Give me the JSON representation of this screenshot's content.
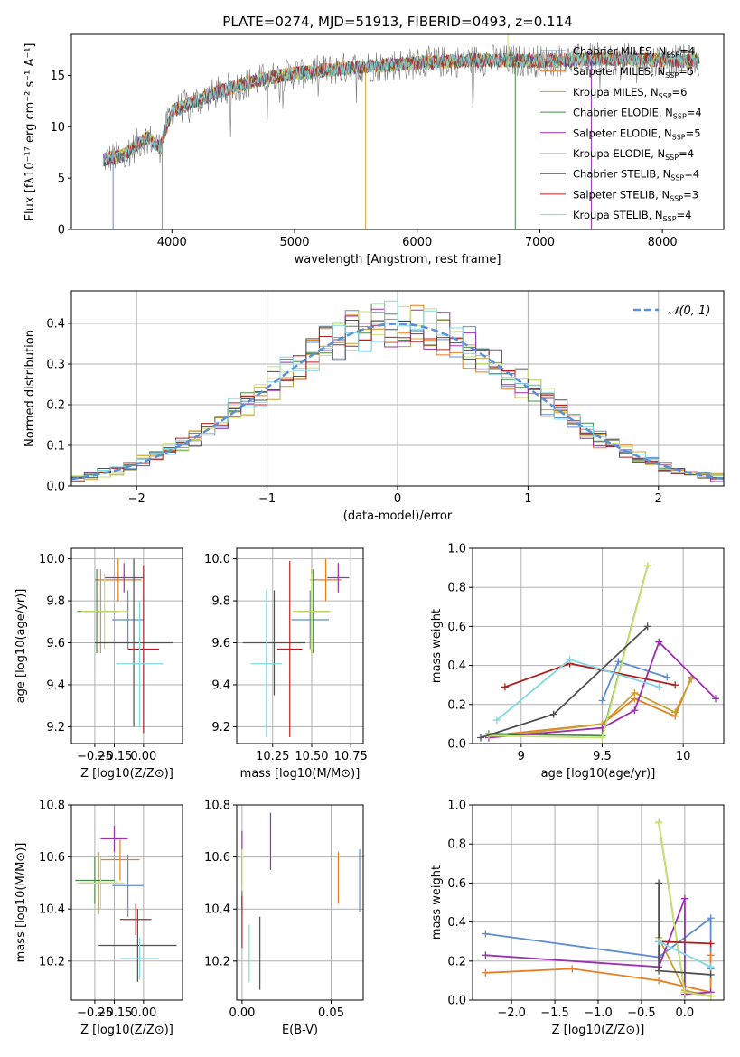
{
  "title": "PLATE=0274, MJD=51913, FIBERID=0493, z=0.114",
  "models": [
    {
      "label": "Chabrier MILES, N",
      "sub": "SSP",
      "n": "=4",
      "color": "#5f8dd3"
    },
    {
      "label": "Salpeter MILES, N",
      "sub": "SSP",
      "n": "=5",
      "color": "#e67e22"
    },
    {
      "label": "Kroupa MILES, N",
      "sub": "SSP",
      "n": "=6",
      "color": "#c8a030"
    },
    {
      "label": "Chabrier ELODIE, N",
      "sub": "SSP",
      "n": "=4",
      "color": "#4a8a4a"
    },
    {
      "label": "Salpeter ELODIE, N",
      "sub": "SSP",
      "n": "=5",
      "color": "#9b30b0"
    },
    {
      "label": "Kroupa ELODIE, N",
      "sub": "SSP",
      "n": "=4",
      "color": "#c8e070"
    },
    {
      "label": "Chabrier STELIB, N",
      "sub": "SSP",
      "n": "=4",
      "color": "#505050"
    },
    {
      "label": "Salpeter STELIB, N",
      "sub": "SSP",
      "n": "=3",
      "color": "#b02020"
    },
    {
      "label": "Kroupa STELIB, N",
      "sub": "SSP",
      "n": "=4",
      "color": "#80d8e0"
    }
  ],
  "chart_data": [
    {
      "id": "spectrum",
      "type": "line",
      "xlabel": "wavelength [Angstrom, rest frame]",
      "ylabel": "Flux [fλ10⁻¹⁷ erg cm⁻² s⁻¹ A⁻¹]",
      "xlim": [
        3180,
        8500
      ],
      "ylim": [
        0,
        19
      ],
      "xticks": [
        4000,
        5000,
        6000,
        7000,
        8000
      ],
      "yticks": [
        0,
        5,
        10,
        15
      ],
      "continuum": [
        [
          3440,
          6.8
        ],
        [
          3600,
          7.2
        ],
        [
          3800,
          9.0
        ],
        [
          3900,
          8.0
        ],
        [
          4000,
          11.5
        ],
        [
          4200,
          12.5
        ],
        [
          4400,
          13.5
        ],
        [
          4600,
          14.2
        ],
        [
          4800,
          14.8
        ],
        [
          5000,
          15.2
        ],
        [
          5500,
          15.8
        ],
        [
          6000,
          16.2
        ],
        [
          6500,
          16.5
        ],
        [
          7000,
          16.4
        ],
        [
          7500,
          16.6
        ],
        [
          8000,
          16.5
        ],
        [
          8300,
          16.4
        ]
      ],
      "spikes": [
        [
          3520,
          0
        ],
        [
          3920,
          0
        ],
        [
          5580,
          0
        ],
        [
          6800,
          0
        ],
        [
          7420,
          0
        ],
        [
          6740,
          19
        ]
      ]
    },
    {
      "id": "residuals",
      "type": "line",
      "xlabel": "(data-model)/error",
      "ylabel": "Normed distribution",
      "xlim": [
        -2.5,
        2.5
      ],
      "ylim": [
        0,
        0.48
      ],
      "xticks": [
        -2,
        -1,
        0,
        1,
        2
      ],
      "yticks": [
        0.0,
        0.1,
        0.2,
        0.3,
        0.4
      ],
      "legend": "𝒩(0, 1)",
      "gaussian_sigma": 1
    },
    {
      "id": "age-Z",
      "type": "scatter",
      "xlabel": "Z [log10(Z/Z⊙)]",
      "ylabel": "age  [log10(age/yr)]",
      "xlim": [
        -0.37,
        0.2
      ],
      "ylim": [
        9.12,
        10.05
      ],
      "xticks": [
        -0.25,
        -0.15,
        0.0
      ],
      "xticklabels": [
        "−0.25",
        "−0.15",
        "0.00"
      ],
      "yticks": [
        9.2,
        9.4,
        9.6,
        9.8,
        10.0
      ],
      "points": [
        {
          "x": -0.08,
          "xerr": 0.08,
          "y": 9.71,
          "yerr": 0.14,
          "c": 0
        },
        {
          "x": -0.13,
          "xerr": 0.12,
          "y": 9.9,
          "yerr": 0.1,
          "c": 1
        },
        {
          "x": -0.22,
          "xerr": 0.1,
          "y": 9.75,
          "yerr": 0.2,
          "c": 2
        },
        {
          "x": -0.24,
          "xerr": 0.1,
          "y": 9.75,
          "yerr": 0.2,
          "c": 3
        },
        {
          "x": -0.1,
          "xerr": 0.1,
          "y": 9.91,
          "yerr": 0.07,
          "c": 4
        },
        {
          "x": -0.2,
          "xerr": 0.12,
          "y": 9.75,
          "yerr": 0.18,
          "c": 5
        },
        {
          "x": -0.05,
          "xerr": 0.2,
          "y": 9.6,
          "yerr": 0.4,
          "c": 6
        },
        {
          "x": 0.0,
          "xerr": 0.08,
          "y": 9.57,
          "yerr": 0.4,
          "c": 7
        },
        {
          "x": -0.02,
          "xerr": 0.12,
          "y": 9.5,
          "yerr": 0.3,
          "c": 8
        }
      ]
    },
    {
      "id": "age-mass",
      "type": "scatter",
      "xlabel": "mass [log10(M/M⊙)]",
      "ylabel": "",
      "xlim": [
        10.02,
        10.83
      ],
      "ylim": [
        9.12,
        10.05
      ],
      "xticks": [
        10.25,
        10.5,
        10.75
      ],
      "xticklabels": [
        "10.25",
        "10.50",
        "10.75"
      ],
      "yticks": [
        9.2,
        9.4,
        9.6,
        9.8,
        10.0
      ],
      "points": [
        {
          "x": 10.49,
          "xerr": 0.12,
          "y": 9.71,
          "yerr": 0.14,
          "c": 0
        },
        {
          "x": 10.59,
          "xerr": 0.1,
          "y": 9.9,
          "yerr": 0.1,
          "c": 1
        },
        {
          "x": 10.5,
          "xerr": 0.12,
          "y": 9.75,
          "yerr": 0.2,
          "c": 2
        },
        {
          "x": 10.51,
          "xerr": 0.1,
          "y": 9.75,
          "yerr": 0.2,
          "c": 3
        },
        {
          "x": 10.67,
          "xerr": 0.07,
          "y": 9.91,
          "yerr": 0.07,
          "c": 4
        },
        {
          "x": 10.5,
          "xerr": 0.12,
          "y": 9.75,
          "yerr": 0.18,
          "c": 5
        },
        {
          "x": 10.26,
          "xerr": 0.2,
          "y": 9.6,
          "yerr": 0.25,
          "c": 6
        },
        {
          "x": 10.36,
          "xerr": 0.08,
          "y": 9.57,
          "yerr": 0.42,
          "c": 7
        },
        {
          "x": 10.21,
          "xerr": 0.1,
          "y": 9.5,
          "yerr": 0.35,
          "c": 8
        }
      ]
    },
    {
      "id": "mw-age",
      "type": "line",
      "xlabel": "age  [log10(age/yr)]",
      "ylabel": "mass weight",
      "xlim": [
        8.7,
        10.25
      ],
      "ylim": [
        0,
        1.0
      ],
      "xticks": [
        9.0,
        9.5,
        10.0
      ],
      "yticks": [
        0.0,
        0.2,
        0.4,
        0.6,
        0.8,
        1.0
      ],
      "series": [
        {
          "c": 0,
          "x": [
            9.5,
            9.6,
            9.9
          ],
          "y": [
            0.22,
            0.42,
            0.34
          ]
        },
        {
          "c": 1,
          "x": [
            8.8,
            9.5,
            9.7,
            9.95,
            10.05
          ],
          "y": [
            0.04,
            0.1,
            0.23,
            0.14,
            0.34
          ]
        },
        {
          "c": 2,
          "x": [
            8.8,
            9.5,
            9.7,
            9.95,
            10.05
          ],
          "y": [
            0.03,
            0.1,
            0.26,
            0.16,
            0.33
          ]
        },
        {
          "c": 3,
          "x": [
            8.8,
            9.5,
            9.78
          ],
          "y": [
            0.05,
            0.04,
            0.91
          ]
        },
        {
          "c": 4,
          "x": [
            8.8,
            9.5,
            9.7,
            9.85,
            10.2
          ],
          "y": [
            0.03,
            0.08,
            0.17,
            0.52,
            0.23
          ]
        },
        {
          "c": 5,
          "x": [
            8.8,
            9.5,
            9.78
          ],
          "y": [
            0.04,
            0.03,
            0.91
          ]
        },
        {
          "c": 6,
          "x": [
            8.75,
            9.2,
            9.78
          ],
          "y": [
            0.03,
            0.15,
            0.6
          ]
        },
        {
          "c": 7,
          "x": [
            8.9,
            9.3,
            9.95
          ],
          "y": [
            0.29,
            0.41,
            0.3
          ]
        },
        {
          "c": 8,
          "x": [
            8.85,
            9.3,
            9.85
          ],
          "y": [
            0.12,
            0.43,
            0.29
          ]
        }
      ]
    },
    {
      "id": "mass-Z",
      "type": "scatter",
      "xlabel": "Z [log10(Z/Z⊙)]",
      "ylabel": "mass [log10(M/M⊙)]",
      "xlim": [
        -0.37,
        0.2
      ],
      "ylim": [
        10.05,
        10.8
      ],
      "xticks": [
        -0.25,
        -0.15,
        0.0
      ],
      "xticklabels": [
        "−0.25",
        "−0.15",
        "0.00"
      ],
      "yticks": [
        10.2,
        10.4,
        10.6,
        10.8
      ],
      "points": [
        {
          "x": -0.08,
          "xerr": 0.08,
          "y": 10.49,
          "yerr": 0.12,
          "c": 0
        },
        {
          "x": -0.12,
          "xerr": 0.1,
          "y": 10.59,
          "yerr": 0.08,
          "c": 1
        },
        {
          "x": -0.23,
          "xerr": 0.1,
          "y": 10.5,
          "yerr": 0.12,
          "c": 2
        },
        {
          "x": -0.25,
          "xerr": 0.1,
          "y": 10.51,
          "yerr": 0.09,
          "c": 3
        },
        {
          "x": -0.15,
          "xerr": 0.07,
          "y": 10.67,
          "yerr": 0.05,
          "c": 4
        },
        {
          "x": -0.22,
          "xerr": 0.12,
          "y": 10.5,
          "yerr": 0.1,
          "c": 5
        },
        {
          "x": -0.03,
          "xerr": 0.2,
          "y": 10.26,
          "yerr": 0.14,
          "c": 6
        },
        {
          "x": -0.04,
          "xerr": 0.08,
          "y": 10.36,
          "yerr": 0.06,
          "c": 7
        },
        {
          "x": -0.02,
          "xerr": 0.1,
          "y": 10.21,
          "yerr": 0.08,
          "c": 8
        }
      ]
    },
    {
      "id": "mass-EBV",
      "type": "scatter",
      "xlabel": "E(B-V)",
      "ylabel": "",
      "xlim": [
        -0.003,
        0.068
      ],
      "ylim": [
        10.05,
        10.8
      ],
      "xticks": [
        0.0,
        0.05
      ],
      "xticklabels": [
        "0.00",
        "0.05"
      ],
      "yticks": [
        10.2,
        10.4,
        10.6,
        10.8
      ],
      "points": [
        {
          "x": 0.066,
          "xerr": 0,
          "y": 10.51,
          "yerr": 0.12,
          "c": 0
        },
        {
          "x": 0.054,
          "xerr": 0,
          "y": 10.52,
          "yerr": 0.1,
          "c": 1
        },
        {
          "x": 0.0,
          "xerr": 0,
          "y": 10.5,
          "yerr": 0.12,
          "c": 2
        },
        {
          "x": 0.0,
          "xerr": 0,
          "y": 10.5,
          "yerr": 0.1,
          "c": 3
        },
        {
          "x": 0.0,
          "xerr": 0,
          "y": 10.6,
          "yerr": 0.1,
          "c": 4
        },
        {
          "x": 0.0,
          "xerr": 0,
          "y": 10.55,
          "yerr": 0.08,
          "c": 5
        },
        {
          "x": 0.01,
          "xerr": 0,
          "y": 10.23,
          "yerr": 0.14,
          "c": 6
        },
        {
          "x": 0.0,
          "xerr": 0,
          "y": 10.35,
          "yerr": 0.1,
          "c": 7
        },
        {
          "x": 0.004,
          "xerr": 0,
          "y": 10.23,
          "yerr": 0.11,
          "c": 8
        },
        {
          "x": 0.016,
          "xerr": 0,
          "y": 10.66,
          "yerr": 0.11,
          "c": 4
        }
      ]
    },
    {
      "id": "mw-Z",
      "type": "line",
      "xlabel": "Z [log10(Z/Z⊙)]",
      "ylabel": "mass weight",
      "xlim": [
        -2.45,
        0.45
      ],
      "ylim": [
        0,
        1.0
      ],
      "xticks": [
        -2.0,
        -1.5,
        -1.0,
        -0.5,
        0.0
      ],
      "xticklabels": [
        "−2.0",
        "−1.5",
        "−1.0",
        "−0.5",
        "0.0"
      ],
      "yticks": [
        0.0,
        0.2,
        0.4,
        0.6,
        0.8,
        1.0
      ],
      "series": [
        {
          "c": 0,
          "x": [
            -2.3,
            -0.3,
            0.3,
            0.3
          ],
          "y": [
            0.34,
            0.22,
            0.42,
            0.16
          ]
        },
        {
          "c": 1,
          "x": [
            -2.3,
            -1.3,
            -0.3,
            0.3,
            0.3
          ],
          "y": [
            0.14,
            0.16,
            0.1,
            0.04,
            0.23
          ]
        },
        {
          "c": 2,
          "x": [
            -0.3,
            0.0,
            0.3
          ],
          "y": [
            0.32,
            0.05,
            0.02
          ]
        },
        {
          "c": 3,
          "x": [
            -0.3,
            0.0,
            0.3
          ],
          "y": [
            0.91,
            0.04,
            0.02
          ]
        },
        {
          "c": 4,
          "x": [
            -2.3,
            -0.3,
            0.0,
            0.0,
            0.3
          ],
          "y": [
            0.23,
            0.17,
            0.52,
            0.03,
            0.04
          ]
        },
        {
          "c": 5,
          "x": [
            -0.3,
            0.0,
            0.3
          ],
          "y": [
            0.91,
            0.04,
            0.02
          ]
        },
        {
          "c": 6,
          "x": [
            -0.3,
            -0.3,
            0.3
          ],
          "y": [
            0.6,
            0.15,
            0.13
          ]
        },
        {
          "c": 7,
          "x": [
            -0.3,
            0.3
          ],
          "y": [
            0.3,
            0.29
          ]
        },
        {
          "c": 8,
          "x": [
            -0.3,
            0.3
          ],
          "y": [
            0.3,
            0.17
          ]
        }
      ]
    }
  ]
}
